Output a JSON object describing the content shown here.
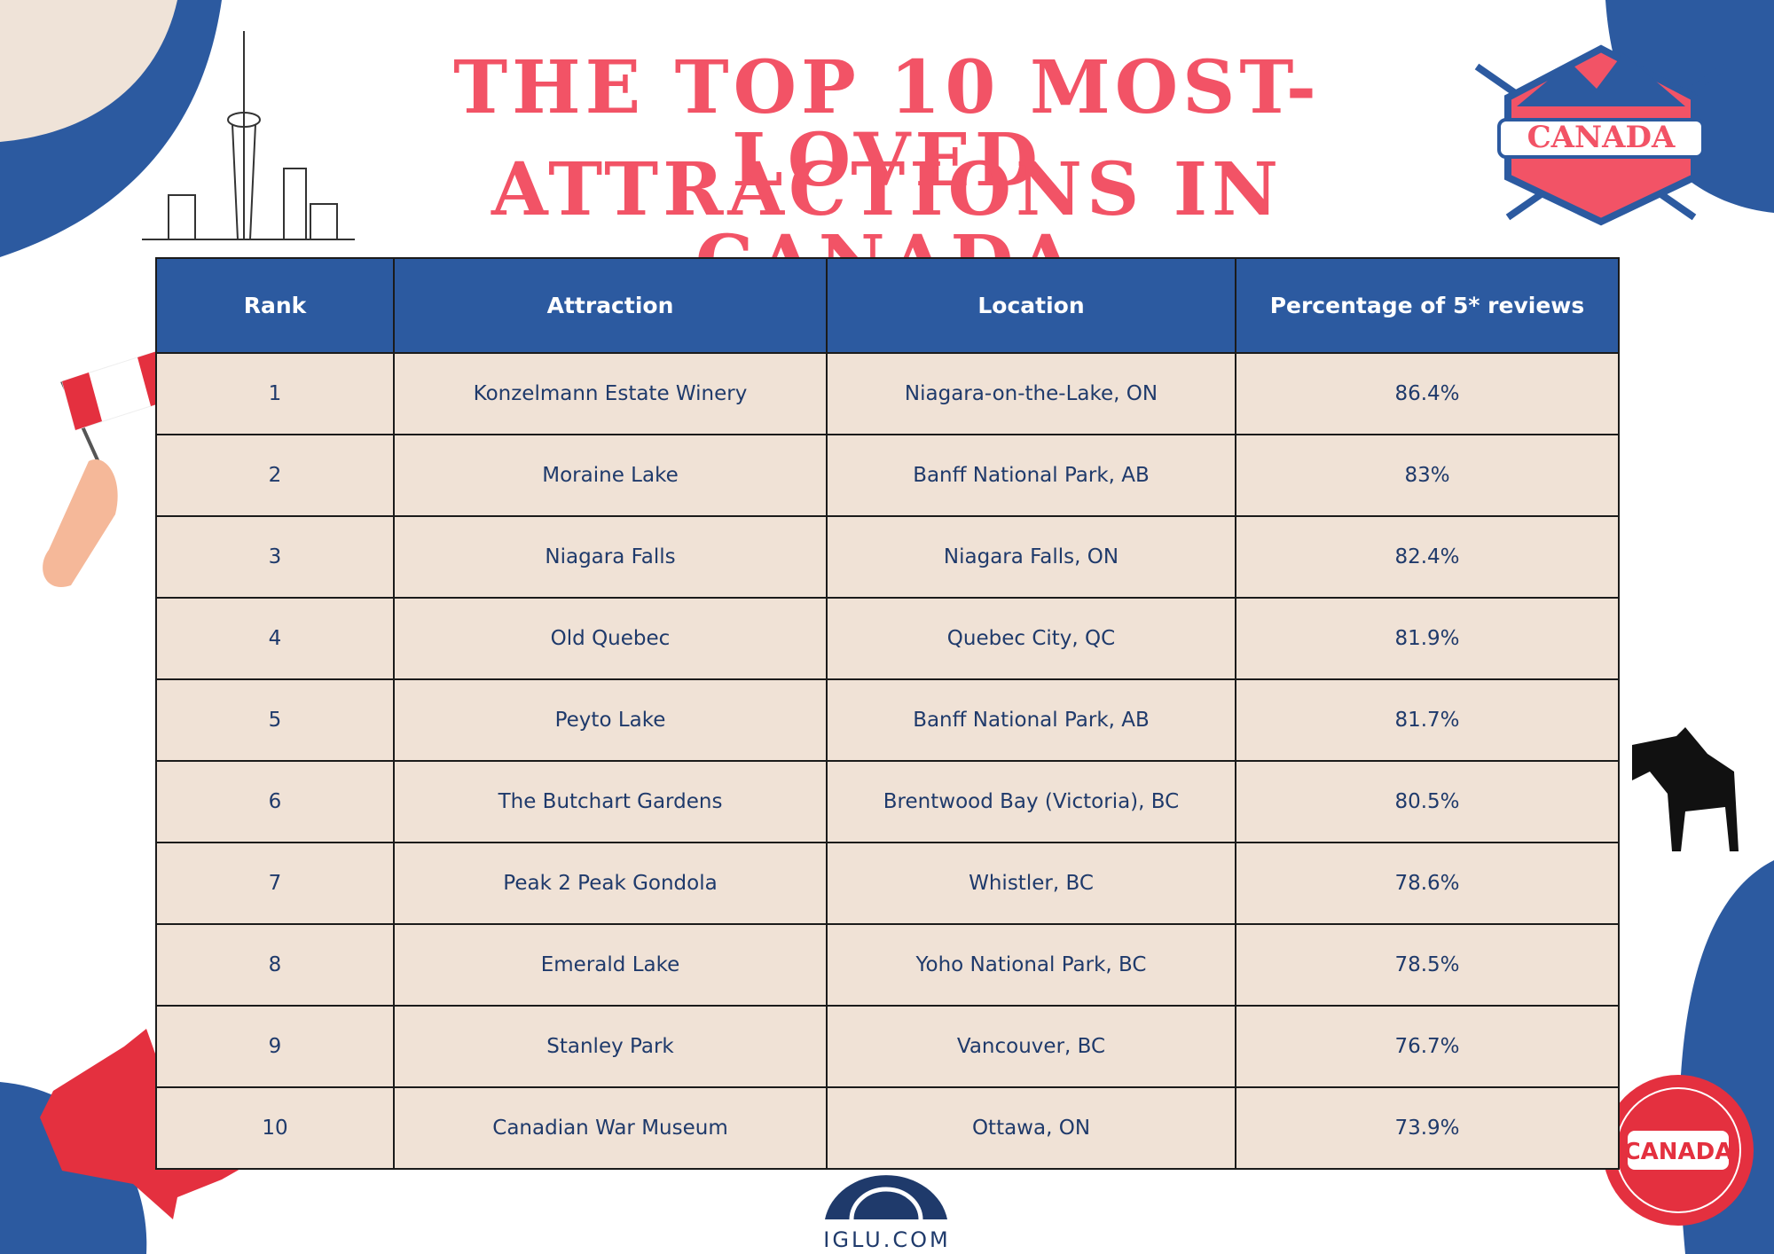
{
  "header": {
    "title_lines": [
      "THE TOP 10 MOST-LOVED",
      "ATTRACTIONS IN CANADA"
    ]
  },
  "badges": {
    "crest": "CANADA",
    "stamp": "CANADA"
  },
  "table": {
    "columns": [
      "Rank",
      "Attraction",
      "Location",
      "Percentage of 5* reviews"
    ],
    "rows": [
      [
        "1",
        "Konzelmann Estate Winery",
        "Niagara-on-the-Lake, ON",
        "86.4%"
      ],
      [
        "2",
        "Moraine Lake",
        "Banff National Park, AB",
        "83%"
      ],
      [
        "3",
        "Niagara Falls",
        "Niagara Falls, ON",
        "82.4%"
      ],
      [
        "4",
        "Old Quebec",
        "Quebec City, QC",
        "81.9%"
      ],
      [
        "5",
        "Peyto Lake",
        "Banff National Park, AB",
        "81.7%"
      ],
      [
        "6",
        "The Butchart Gardens",
        "Brentwood Bay (Victoria), BC",
        "80.5%"
      ],
      [
        "7",
        "Peak 2 Peak Gondola",
        "Whistler, BC",
        "78.6%"
      ],
      [
        "8",
        "Emerald Lake",
        "Yoho National Park, BC",
        "78.5%"
      ],
      [
        "9",
        "Stanley Park",
        "Vancouver, BC",
        "76.7%"
      ],
      [
        "10",
        "Canadian War Museum",
        "Ottawa, ON",
        "73.9%"
      ]
    ]
  },
  "footer": {
    "logo": "IGLU.COM"
  }
}
